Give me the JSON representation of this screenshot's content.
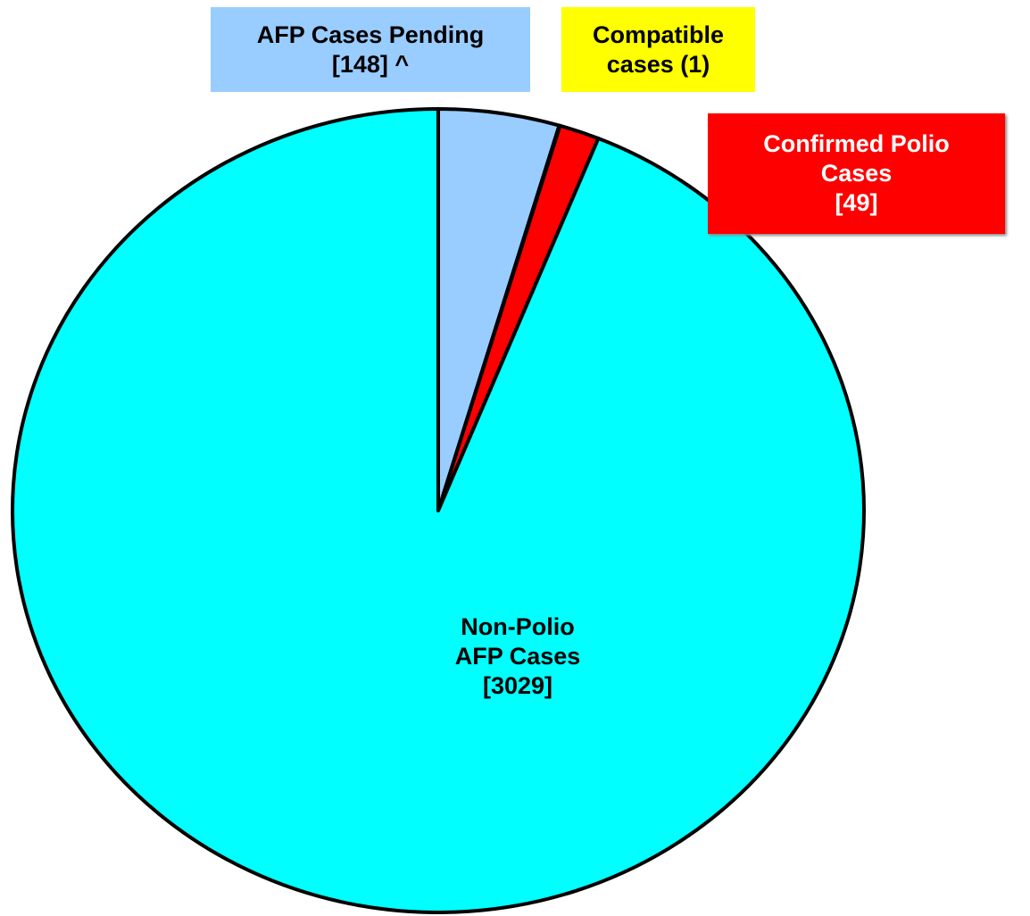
{
  "chart_data": {
    "type": "pie",
    "categories": [
      "AFP Cases Pending\n[148] ^",
      "Compatible\ncases (1)",
      "Confirmed Polio\nCases\n[49]",
      "Non-Polio\nAFP Cases\n[3029]"
    ],
    "values": [
      148,
      1,
      49,
      3029
    ],
    "colors": [
      "#99ccff",
      "#ffff00",
      "#ff0000",
      "#00ffff"
    ]
  }
}
